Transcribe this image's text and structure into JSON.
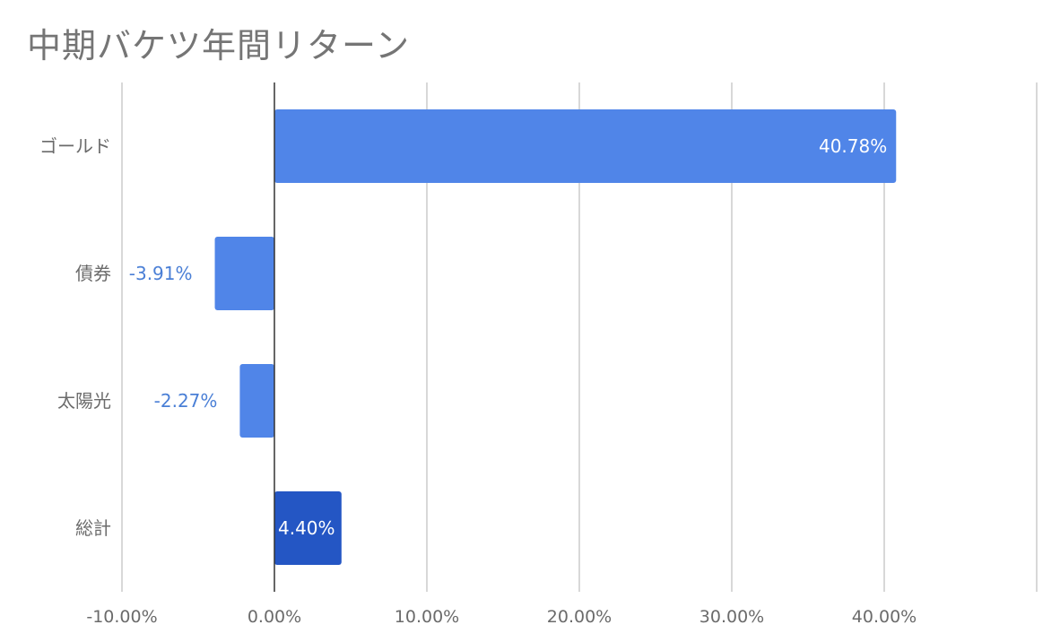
{
  "chart_data": {
    "type": "bar",
    "orientation": "horizontal",
    "title": "中期バケツ年間リターン",
    "categories": [
      "ゴールド",
      "債券",
      "太陽光",
      "総計"
    ],
    "values": [
      40.78,
      -3.91,
      -2.27,
      4.4
    ],
    "data_labels": [
      "40.78%",
      "-3.91%",
      "-2.27%",
      "4.40%"
    ],
    "xlabel": "",
    "ylabel": "",
    "xlim": [
      -10,
      50
    ],
    "x_ticks": [
      -10,
      0,
      10,
      20,
      30,
      40
    ],
    "x_tick_labels": [
      "-10.00%",
      "0.00%",
      "10.00%",
      "20.00%",
      "30.00%",
      "40.00%"
    ],
    "grid": true,
    "legend": "none",
    "colors": {
      "bar": "#5085e8",
      "total_bar": "#2456c4",
      "label_inside": "#ffffff",
      "label_outside": "#4a7fd6",
      "grid": "#cccccc",
      "zero_line": "#333333"
    }
  }
}
